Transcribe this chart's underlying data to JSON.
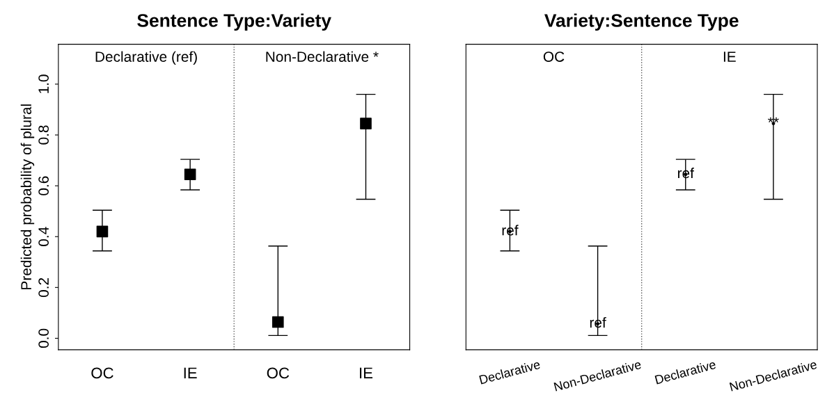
{
  "chart_data": [
    {
      "type": "scatter",
      "title": "Sentence Type:Variety",
      "ylabel": "Predicted probability of plural",
      "categories": [
        "OC",
        "IE",
        "OC",
        "IE"
      ],
      "ylim": [
        -0.045,
        1.157
      ],
      "yticks": [
        {
          "value": 0,
          "label": "0.0"
        },
        {
          "value": 0.2,
          "label": "0.2"
        },
        {
          "value": 0.4,
          "label": "0.4"
        },
        {
          "value": 0.6,
          "label": "0.6"
        },
        {
          "value": 0.8,
          "label": "0.8"
        },
        {
          "value": 1,
          "label": "1.0"
        }
      ],
      "series": [
        {
          "color": "#000000",
          "values": [
            0.42,
            0.645,
            0.064,
            0.845
          ],
          "errors": [
            [
              0.344,
              0.504
            ],
            [
              0.584,
              0.704
            ],
            [
              0.011,
              0.363
            ],
            [
              0.547,
              0.96
            ]
          ]
        }
      ],
      "marker": "square",
      "grid": false,
      "annotations": [
        "Declarative (ref)",
        "Non-Declarative *"
      ]
    },
    {
      "type": "scatter",
      "title": "Variety:Sentence Type",
      "categories": [
        "Declarative",
        "Non-Declarative",
        "Declarative",
        "Non-Declarative"
      ],
      "ylim": [
        -0.045,
        1.157
      ],
      "tick_labels": "x",
      "series": [
        {
          "color": "#000000",
          "values": [
            0.42,
            0.057,
            0.645,
            0.845
          ],
          "errors": [
            [
              0.344,
              0.504
            ],
            [
              0.011,
              0.363
            ],
            [
              0.584,
              0.704
            ],
            [
              0.547,
              0.96
            ]
          ],
          "value_labels": [
            "ref",
            "ref",
            "ref",
            "**"
          ]
        }
      ],
      "marker": "circle",
      "grid": false,
      "annotations": [
        "OC",
        "IE"
      ]
    }
  ]
}
